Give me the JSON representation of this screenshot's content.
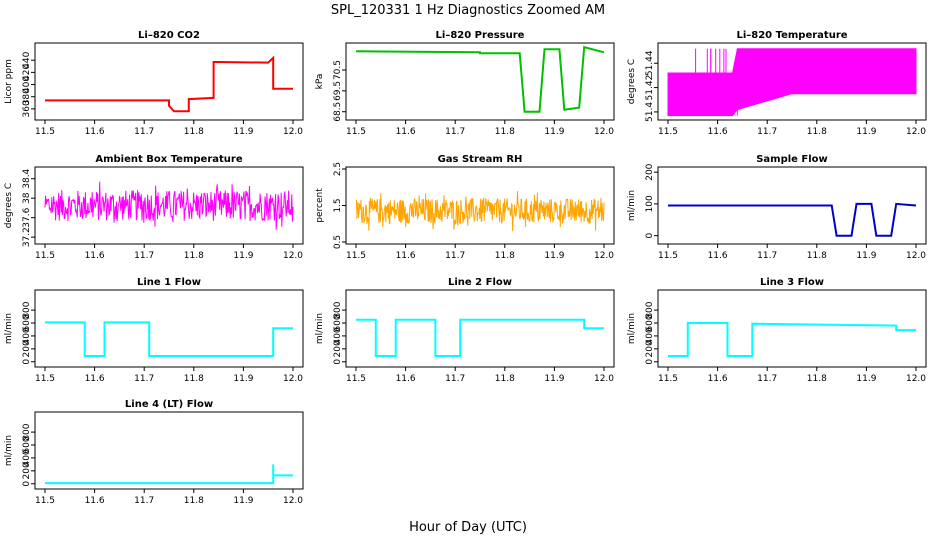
{
  "figure": {
    "title": "SPL_120331  1 Hz Diagnostics Zoomed AM",
    "xlabel": "Hour of Day (UTC)"
  },
  "chart_data": [
    {
      "type": "line",
      "title": "Li–820 CO2",
      "ylabel": "Licor ppm",
      "color": "#ff0000",
      "xlim": [
        11.5,
        12.0
      ],
      "ylim": [
        345,
        465
      ],
      "xticks": [
        "11.5",
        "11.6",
        "11.7",
        "11.8",
        "11.9",
        "12.0"
      ],
      "yticks": [
        360,
        380,
        400,
        420,
        440
      ],
      "x": [
        11.5,
        11.75,
        11.75,
        11.76,
        11.79,
        11.79,
        11.84,
        11.84,
        11.85,
        11.95,
        11.96,
        11.96,
        11.97,
        12.0
      ],
      "y": [
        374,
        374,
        365,
        356,
        356,
        376,
        378,
        437,
        437,
        436,
        444,
        393,
        393,
        393
      ]
    },
    {
      "type": "line",
      "title": "Li–820 Pressure",
      "ylabel": "kPa",
      "color": "#00c000",
      "xlim": [
        11.5,
        12.0
      ],
      "ylim": [
        68.2,
        71.7
      ],
      "xticks": [
        "11.5",
        "11.6",
        "11.7",
        "11.8",
        "11.9",
        "12.0"
      ],
      "yticks": [
        68.5,
        69.5,
        70.5
      ],
      "x": [
        11.5,
        11.75,
        11.75,
        11.83,
        11.84,
        11.87,
        11.88,
        11.91,
        11.92,
        11.95,
        11.96,
        12.0
      ],
      "y": [
        71.4,
        71.35,
        71.3,
        71.3,
        68.5,
        68.5,
        71.5,
        71.5,
        68.6,
        68.7,
        71.6,
        71.35
      ]
    },
    {
      "type": "band",
      "title": "Li–820 Temperature",
      "ylabel": "degrees C",
      "color": "#ff00ff",
      "xlim": [
        11.5,
        12.0
      ],
      "ylim": [
        51.395,
        51.455
      ],
      "xticks": [
        "11.5",
        "11.6",
        "11.7",
        "11.8",
        "11.9",
        "12.0"
      ],
      "yticks": [
        51.4,
        51.42,
        51.44
      ],
      "x": [
        11.5,
        11.63,
        11.64,
        11.75,
        11.76,
        12.0
      ],
      "lower": [
        51.397,
        51.397,
        51.402,
        51.415,
        51.415,
        51.415
      ],
      "upper": [
        51.432,
        51.432,
        51.452,
        51.452,
        51.452,
        51.452
      ]
    },
    {
      "type": "noise",
      "title": "Ambient Box Temperature",
      "ylabel": "degrees C",
      "color": "#ff00ff",
      "xlim": [
        11.5,
        12.0
      ],
      "ylim": [
        37.1,
        38.6
      ],
      "xticks": [
        "11.5",
        "11.6",
        "11.7",
        "11.8",
        "11.9",
        "12.0"
      ],
      "yticks": [
        37.2,
        37.6,
        38.0,
        38.4
      ],
      "mean": 37.85,
      "spread": 0.32,
      "points": 400
    },
    {
      "type": "noise",
      "title": "Gas Stream RH",
      "ylabel": "percent",
      "color": "#ffa500",
      "xlim": [
        11.5,
        12.0
      ],
      "ylim": [
        0.5,
        2.5
      ],
      "xticks": [
        "11.5",
        "11.6",
        "11.7",
        "11.8",
        "11.9",
        "12.0"
      ],
      "yticks": [
        0.5,
        1.5,
        2.5
      ],
      "yticklabels": [
        "0.5",
        "1.5",
        "2.5"
      ],
      "mean": 1.35,
      "spread": 0.35,
      "points": 500
    },
    {
      "type": "line",
      "title": "Sample Flow",
      "ylabel": "ml/min",
      "color": "#0000cd",
      "xlim": [
        11.5,
        12.0
      ],
      "ylim": [
        -20,
        210
      ],
      "xticks": [
        "11.5",
        "11.6",
        "11.7",
        "11.8",
        "11.9",
        "12.0"
      ],
      "yticks": [
        0,
        100,
        200
      ],
      "x": [
        11.5,
        11.83,
        11.84,
        11.87,
        11.88,
        11.91,
        11.92,
        11.95,
        11.96,
        12.0
      ],
      "y": [
        95,
        95,
        0,
        0,
        100,
        100,
        0,
        0,
        100,
        95
      ]
    },
    {
      "type": "line",
      "title": "Line 1 Flow",
      "ylabel": "ml/min",
      "color": "#00ffff",
      "xlim": [
        11.5,
        12.0
      ],
      "ylim": [
        -50,
        1080
      ],
      "xticks": [
        "11.5",
        "11.6",
        "11.7",
        "11.8",
        "11.9",
        "12.0"
      ],
      "yticks": [
        0,
        200,
        400,
        600,
        800
      ],
      "x": [
        11.5,
        11.58,
        11.58,
        11.62,
        11.62,
        11.71,
        11.71,
        11.96,
        11.96,
        12.0
      ],
      "y": [
        610,
        610,
        90,
        90,
        610,
        610,
        90,
        90,
        520,
        520
      ]
    },
    {
      "type": "line",
      "title": "Line 2 Flow",
      "ylabel": "ml/min",
      "color": "#00ffff",
      "xlim": [
        11.5,
        12.0
      ],
      "ylim": [
        -50,
        1080
      ],
      "xticks": [
        "11.5",
        "11.6",
        "11.7",
        "11.8",
        "11.9",
        "12.0"
      ],
      "yticks": [
        0,
        200,
        400,
        600,
        800
      ],
      "x": [
        11.5,
        11.54,
        11.54,
        11.58,
        11.58,
        11.66,
        11.66,
        11.71,
        11.71,
        11.96,
        11.96,
        12.0
      ],
      "y": [
        650,
        650,
        90,
        90,
        650,
        650,
        90,
        90,
        650,
        650,
        520,
        520
      ]
    },
    {
      "type": "line",
      "title": "Line 3 Flow",
      "ylabel": "ml/min",
      "color": "#00ffff",
      "xlim": [
        11.5,
        12.0
      ],
      "ylim": [
        -50,
        1080
      ],
      "xticks": [
        "11.5",
        "11.6",
        "11.7",
        "11.8",
        "11.9",
        "12.0"
      ],
      "yticks": [
        0,
        200,
        400,
        600,
        800
      ],
      "x": [
        11.5,
        11.54,
        11.54,
        11.62,
        11.62,
        11.67,
        11.67,
        11.96,
        11.96,
        12.0
      ],
      "y": [
        90,
        90,
        600,
        600,
        90,
        90,
        590,
        560,
        490,
        490
      ]
    },
    {
      "type": "line",
      "title": "Line 4 (LT) Flow",
      "ylabel": "ml/min",
      "color": "#00ffff",
      "xlim": [
        11.5,
        12.0
      ],
      "ylim": [
        -50,
        1080
      ],
      "xticks": [
        "11.5",
        "11.6",
        "11.7",
        "11.8",
        "11.9",
        "12.0"
      ],
      "yticks": [
        0,
        200,
        400,
        600,
        800
      ],
      "x": [
        11.5,
        11.96,
        11.96,
        11.96,
        12.0
      ],
      "y": [
        10,
        10,
        300,
        130,
        130
      ]
    }
  ]
}
